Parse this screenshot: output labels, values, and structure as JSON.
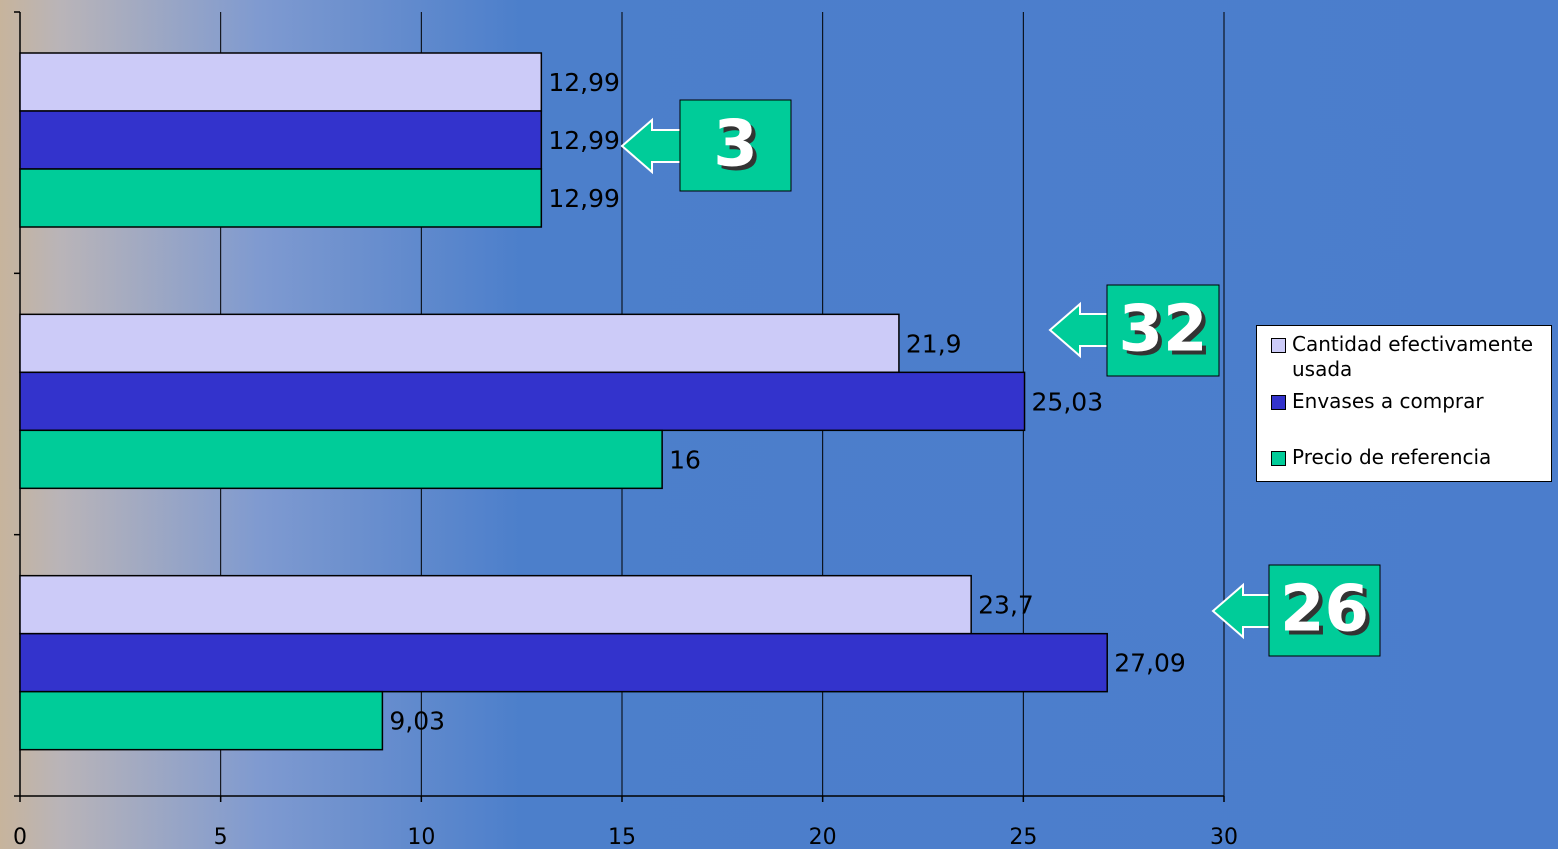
{
  "chart_data": {
    "type": "bar",
    "orientation": "horizontal",
    "groups": [
      {
        "values": [
          12.99,
          12.99,
          12.99
        ],
        "labels": [
          "12,99",
          "12,99",
          "12,99"
        ],
        "callout": "3"
      },
      {
        "values": [
          21.9,
          25.03,
          16
        ],
        "labels": [
          "21,9",
          "25,03",
          "16"
        ],
        "callout": "32"
      },
      {
        "values": [
          23.7,
          27.09,
          9.03
        ],
        "labels": [
          "23,7",
          "27,09",
          "9,03"
        ],
        "callout": "26"
      }
    ],
    "series": [
      {
        "name": "Cantidad efectivamente usada",
        "color": "#cccbf8"
      },
      {
        "name": "Envases a comprar",
        "color": "#3333cc"
      },
      {
        "name": "Precio de referencia",
        "color": "#00cc99"
      }
    ],
    "xlim": [
      0,
      30
    ],
    "xticks": [
      "0",
      "5",
      "10",
      "15",
      "20",
      "25",
      "30"
    ],
    "grid": true,
    "legend_position": "right"
  }
}
